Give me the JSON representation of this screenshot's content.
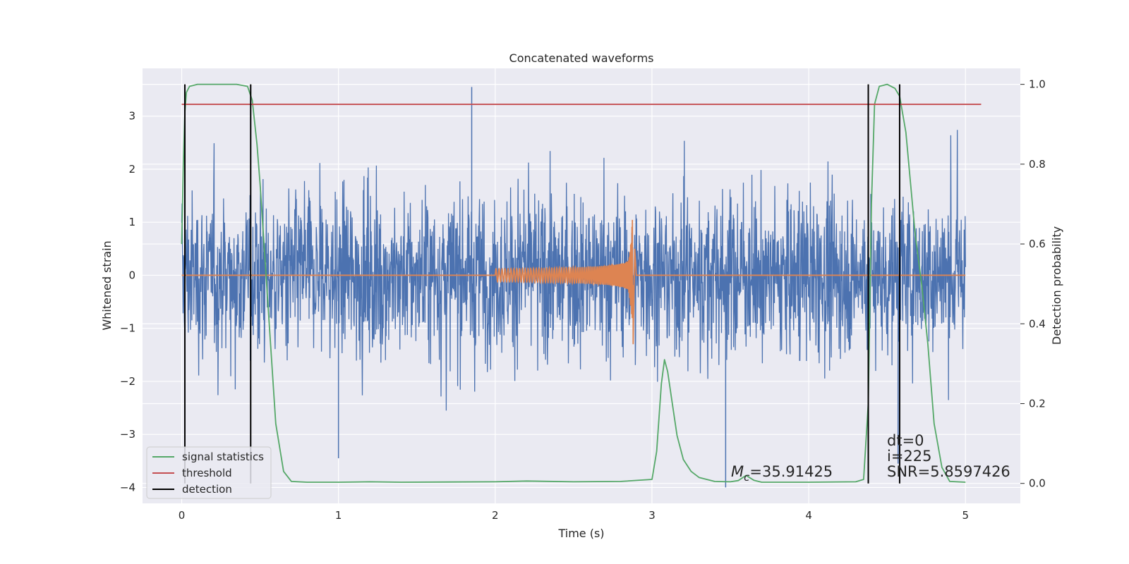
{
  "chart_data": {
    "type": "line",
    "title": "Concatenated waveforms",
    "xlabel": "Time (s)",
    "ylabel": "Whitened strain",
    "ylabel_right": "Detection probability",
    "xlim": [
      -0.25,
      5.35
    ],
    "ylim": [
      -4.3,
      3.9
    ],
    "ylim_right": [
      -0.05,
      1.04
    ],
    "x_ticks": [
      0,
      1,
      2,
      3,
      4,
      5
    ],
    "y_ticks": [
      -4,
      -3,
      -2,
      -1,
      0,
      1,
      2,
      3
    ],
    "y_ticks_right": [
      0.0,
      0.2,
      0.4,
      0.6,
      0.8,
      1.0
    ],
    "y_ticks_right_labels": [
      "0.0",
      "0.2",
      "0.4",
      "0.6",
      "0.8",
      "1.0"
    ],
    "grid": true,
    "legend_position": "lower-left",
    "colors": {
      "background": "#eaeaf2",
      "grid": "#ffffff",
      "noise": "#4c72b0",
      "waveform": "#dd8452",
      "signal_statistics": "#55a868",
      "threshold": "#c44e52",
      "detection": "#000000"
    },
    "series": [
      {
        "name": "signal statistics",
        "axis": "right",
        "x": [
          0.0,
          0.01,
          0.02,
          0.03,
          0.05,
          0.1,
          0.2,
          0.35,
          0.42,
          0.45,
          0.48,
          0.5,
          0.55,
          0.6,
          0.65,
          0.7,
          0.8,
          1.0,
          1.2,
          1.4,
          2.0,
          2.2,
          2.5,
          2.8,
          3.0,
          3.03,
          3.06,
          3.08,
          3.1,
          3.13,
          3.16,
          3.2,
          3.25,
          3.3,
          3.4,
          3.5,
          3.55,
          3.6,
          3.65,
          3.7,
          4.0,
          4.3,
          4.35,
          4.38,
          4.4,
          4.42,
          4.45,
          4.5,
          4.55,
          4.58,
          4.62,
          4.65,
          4.68,
          4.72,
          4.76,
          4.8,
          4.85,
          4.9,
          5.0
        ],
        "values": [
          0.6,
          0.8,
          0.93,
          0.98,
          0.995,
          1.0,
          1.0,
          1.0,
          0.995,
          0.96,
          0.85,
          0.75,
          0.45,
          0.15,
          0.03,
          0.005,
          0.003,
          0.003,
          0.004,
          0.003,
          0.004,
          0.006,
          0.004,
          0.005,
          0.01,
          0.08,
          0.25,
          0.31,
          0.28,
          0.2,
          0.12,
          0.06,
          0.03,
          0.015,
          0.005,
          0.004,
          0.007,
          0.02,
          0.008,
          0.003,
          0.003,
          0.004,
          0.01,
          0.2,
          0.7,
          0.95,
          0.995,
          1.0,
          0.99,
          0.97,
          0.88,
          0.75,
          0.62,
          0.5,
          0.35,
          0.15,
          0.04,
          0.005,
          0.003
        ]
      },
      {
        "name": "threshold",
        "axis": "right",
        "x": [
          0.0,
          5.1
        ],
        "values": [
          0.95,
          0.95
        ]
      },
      {
        "name": "detection",
        "axis": "right",
        "x_positions": [
          0.02,
          0.44,
          4.38,
          4.58
        ],
        "range": [
          0.0,
          1.0
        ]
      },
      {
        "axis": "left",
        "description_of_source": "whitened detector noise, amplitude approx ±2.5 with spikes to ±3.5",
        "x_range": [
          0.0,
          5.0
        ],
        "extremes": [
          {
            "x": 1.85,
            "y": 3.55
          },
          {
            "x": 1.0,
            "y": -3.45
          },
          {
            "x": 3.47,
            "y": -4.0
          },
          {
            "x": 4.57,
            "y": -3.55
          }
        ]
      },
      {
        "axis": "left",
        "description_of_source": "injected chirp waveform",
        "x_range": [
          2.0,
          2.9
        ],
        "peak_time": 2.88,
        "peak_amplitude": 1.3
      }
    ],
    "annotations": {
      "mc": "=35.91425",
      "mc_symbol": "M",
      "mc_subscript": "c",
      "dt": "dt=0",
      "i": "i=225",
      "snr": "SNR=5.8597426"
    },
    "legend": [
      "signal statistics",
      "threshold",
      "detection"
    ]
  }
}
